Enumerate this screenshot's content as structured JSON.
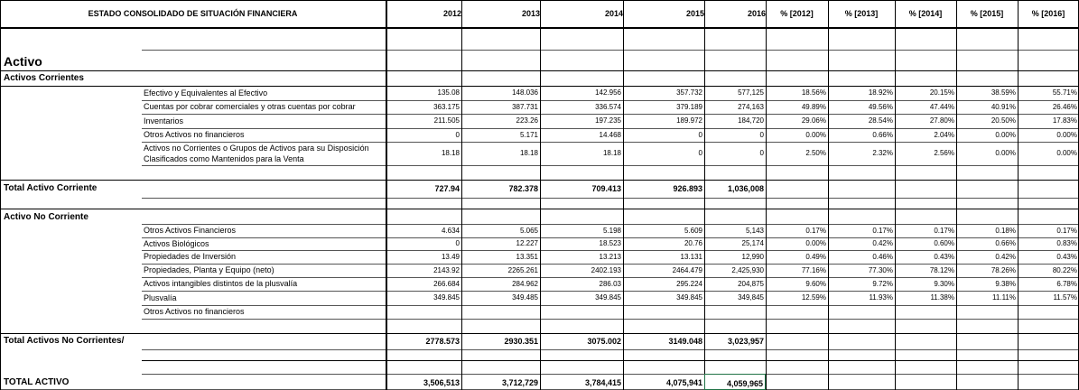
{
  "sheet": {
    "title": "ESTADO CONSOLIDADO DE SITUACIÓN FINANCIERA",
    "years": [
      "2012",
      "2013",
      "2014",
      "2015",
      "2016"
    ],
    "pct_headers": [
      "% [2012]",
      "% [2013]",
      "% [2014]",
      "% [2015]",
      "% [2016]"
    ],
    "activo_label": "Activo",
    "corrientes_label": "Activos Corrientes",
    "current_rows": [
      {
        "label": "Efectivo y Equivalentes al Efectivo",
        "values": [
          "135.08",
          "148.036",
          "142.956",
          "357.732",
          "577,125"
        ],
        "pcts": [
          "18.56%",
          "18.92%",
          "20.15%",
          "38.59%",
          "55.71%"
        ]
      },
      {
        "label": "Cuentas por cobrar comerciales y otras cuentas por cobrar",
        "values": [
          "363.175",
          "387.731",
          "336.574",
          "379.189",
          "274,163"
        ],
        "pcts": [
          "49.89%",
          "49.56%",
          "47.44%",
          "40.91%",
          "26.46%"
        ]
      },
      {
        "label": "Inventarios",
        "values": [
          "211.505",
          "223.26",
          "197.235",
          "189.972",
          "184,720"
        ],
        "pcts": [
          "29.06%",
          "28.54%",
          "27.80%",
          "20.50%",
          "17.83%"
        ]
      },
      {
        "label": "Otros Activos no financieros",
        "values": [
          "0",
          "5.171",
          "14.468",
          "0",
          "0"
        ],
        "pcts": [
          "0.00%",
          "0.66%",
          "2.04%",
          "0.00%",
          "0.00%"
        ]
      },
      {
        "label": "Activos no Corrientes o Grupos de Activos para su Disposición",
        "label2": "Clasificados como Mantenidos para la Venta",
        "values": [
          "18.18",
          "18.18",
          "18.18",
          "0",
          "0"
        ],
        "pcts": [
          "2.50%",
          "2.32%",
          "2.56%",
          "0.00%",
          "0.00%"
        ]
      }
    ],
    "total_corriente": {
      "label": "Total Activo Corriente",
      "values": [
        "727.94",
        "782.378",
        "709.413",
        "926.893",
        "1,036,008"
      ]
    },
    "no_corriente_label": "Activo No Corriente",
    "noncurrent_rows": [
      {
        "label": "Otros Activos Financieros",
        "values": [
          "4.634",
          "5.065",
          "5.198",
          "5.609",
          "5,143"
        ],
        "pcts": [
          "0.17%",
          "0.17%",
          "0.17%",
          "0.18%",
          "0.17%"
        ]
      },
      {
        "label": "Activos Biológicos",
        "values": [
          "0",
          "12.227",
          "18.523",
          "20.76",
          "25,174"
        ],
        "pcts": [
          "0.00%",
          "0.42%",
          "0.60%",
          "0.66%",
          "0.83%"
        ]
      },
      {
        "label": "Propiedades de Inversión",
        "values": [
          "13.49",
          "13.351",
          "13.213",
          "13.131",
          "12,990"
        ],
        "pcts": [
          "0.49%",
          "0.46%",
          "0.43%",
          "0.42%",
          "0.43%"
        ]
      },
      {
        "label": "Propiedades, Planta y Equipo (neto)",
        "values": [
          "2143.92",
          "2265.261",
          "2402.193",
          "2464.479",
          "2,425,930"
        ],
        "pcts": [
          "77.16%",
          "77.30%",
          "78.12%",
          "78.26%",
          "80.22%"
        ]
      },
      {
        "label": "Activos intangibles distintos de la plusvalía",
        "values": [
          "266.684",
          "284.962",
          "286.03",
          "295.224",
          "204,875"
        ],
        "pcts": [
          "9.60%",
          "9.72%",
          "9.30%",
          "9.38%",
          "6.78%"
        ]
      },
      {
        "label": "Plusvalía",
        "values": [
          "349.845",
          "349.485",
          "349.845",
          "349.845",
          "349,845"
        ],
        "pcts": [
          "12.59%",
          "11.93%",
          "11.38%",
          "11.11%",
          "11.57%"
        ]
      },
      {
        "label": "Otros Activos no financieros",
        "values": [
          "",
          "",
          "",
          "",
          ""
        ],
        "pcts": [
          "",
          "",
          "",
          "",
          ""
        ]
      }
    ],
    "total_no_corriente": {
      "label": "Total Activos No Corrientes/",
      "values": [
        "2778.573",
        "2930.351",
        "3075.002",
        "3149.048",
        "3,023,957"
      ]
    },
    "total_activo": {
      "label": "TOTAL  ACTIVO",
      "values": [
        "3,506,513",
        "3,712,729",
        "3,784,415",
        "4,075,941",
        "4,059,965"
      ]
    }
  }
}
